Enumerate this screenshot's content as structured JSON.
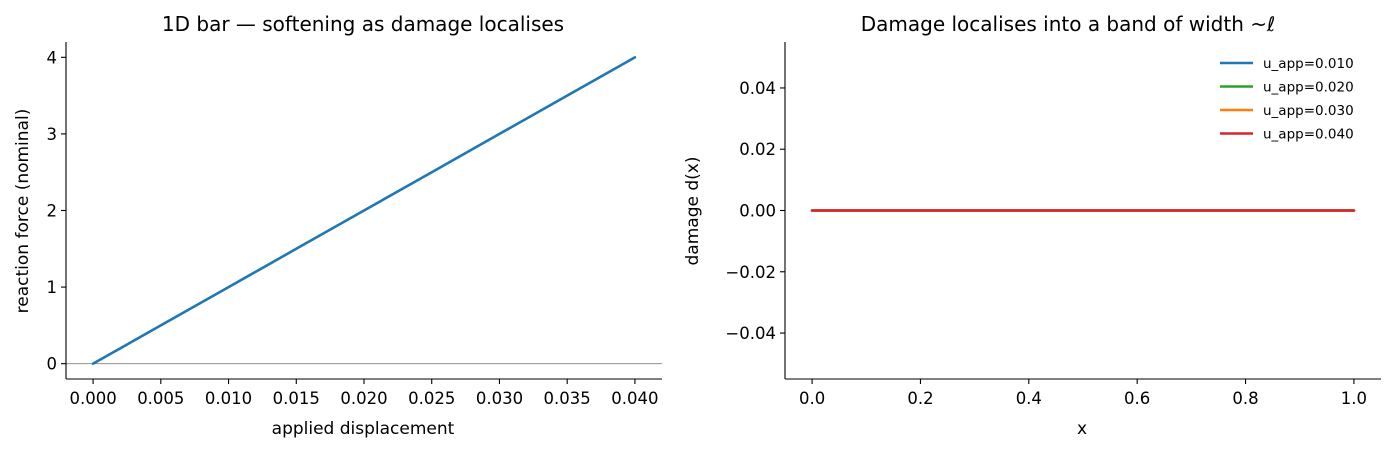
{
  "chart_data": [
    {
      "type": "line",
      "title": "1D bar — softening as damage localises",
      "xlabel": "applied displacement",
      "ylabel": "reaction force (nominal)",
      "xlim": [
        -0.002,
        0.042
      ],
      "ylim": [
        -0.2,
        4.2
      ],
      "xticks": [
        0.0,
        0.005,
        0.01,
        0.015,
        0.02,
        0.025,
        0.03,
        0.035,
        0.04
      ],
      "xtick_labels": [
        "0.000",
        "0.005",
        "0.010",
        "0.015",
        "0.020",
        "0.025",
        "0.030",
        "0.035",
        "0.040"
      ],
      "yticks": [
        0,
        1,
        2,
        3,
        4
      ],
      "ytick_labels": [
        "0",
        "1",
        "2",
        "3",
        "4"
      ],
      "reference_line_y": 0,
      "grid": false,
      "series": [
        {
          "x": [
            0.0,
            0.005,
            0.01,
            0.015,
            0.02,
            0.025,
            0.03,
            0.035,
            0.04
          ],
          "y": [
            0.0,
            0.5,
            1.0,
            1.5,
            2.0,
            2.5,
            3.0,
            3.5,
            4.0
          ],
          "color": "#1f77b4"
        }
      ]
    },
    {
      "type": "line",
      "title": "Damage localises into a band of width ~ℓ",
      "xlabel": "x",
      "ylabel": "damage d(x)",
      "xlim": [
        -0.05,
        1.05
      ],
      "ylim": [
        -0.055,
        0.055
      ],
      "xticks": [
        0.0,
        0.2,
        0.4,
        0.6,
        0.8,
        1.0
      ],
      "xtick_labels": [
        "0.0",
        "0.2",
        "0.4",
        "0.6",
        "0.8",
        "1.0"
      ],
      "yticks": [
        -0.04,
        -0.02,
        0.0,
        0.02,
        0.04
      ],
      "ytick_labels": [
        "−0.04",
        "−0.02",
        "0.00",
        "0.02",
        "0.04"
      ],
      "legend_position": "top-right",
      "grid": false,
      "series": [
        {
          "name": "u_app=0.010",
          "x": [
            0.0,
            1.0
          ],
          "y": [
            0.0,
            0.0
          ],
          "color": "#1f77b4"
        },
        {
          "name": "u_app=0.020",
          "x": [
            0.0,
            1.0
          ],
          "y": [
            0.0,
            0.0
          ],
          "color": "#2ca02c"
        },
        {
          "name": "u_app=0.030",
          "x": [
            0.0,
            1.0
          ],
          "y": [
            0.0,
            0.0
          ],
          "color": "#ff7f0e"
        },
        {
          "name": "u_app=0.040",
          "x": [
            0.0,
            1.0
          ],
          "y": [
            0.0,
            0.0
          ],
          "color": "#d62728"
        }
      ]
    }
  ]
}
